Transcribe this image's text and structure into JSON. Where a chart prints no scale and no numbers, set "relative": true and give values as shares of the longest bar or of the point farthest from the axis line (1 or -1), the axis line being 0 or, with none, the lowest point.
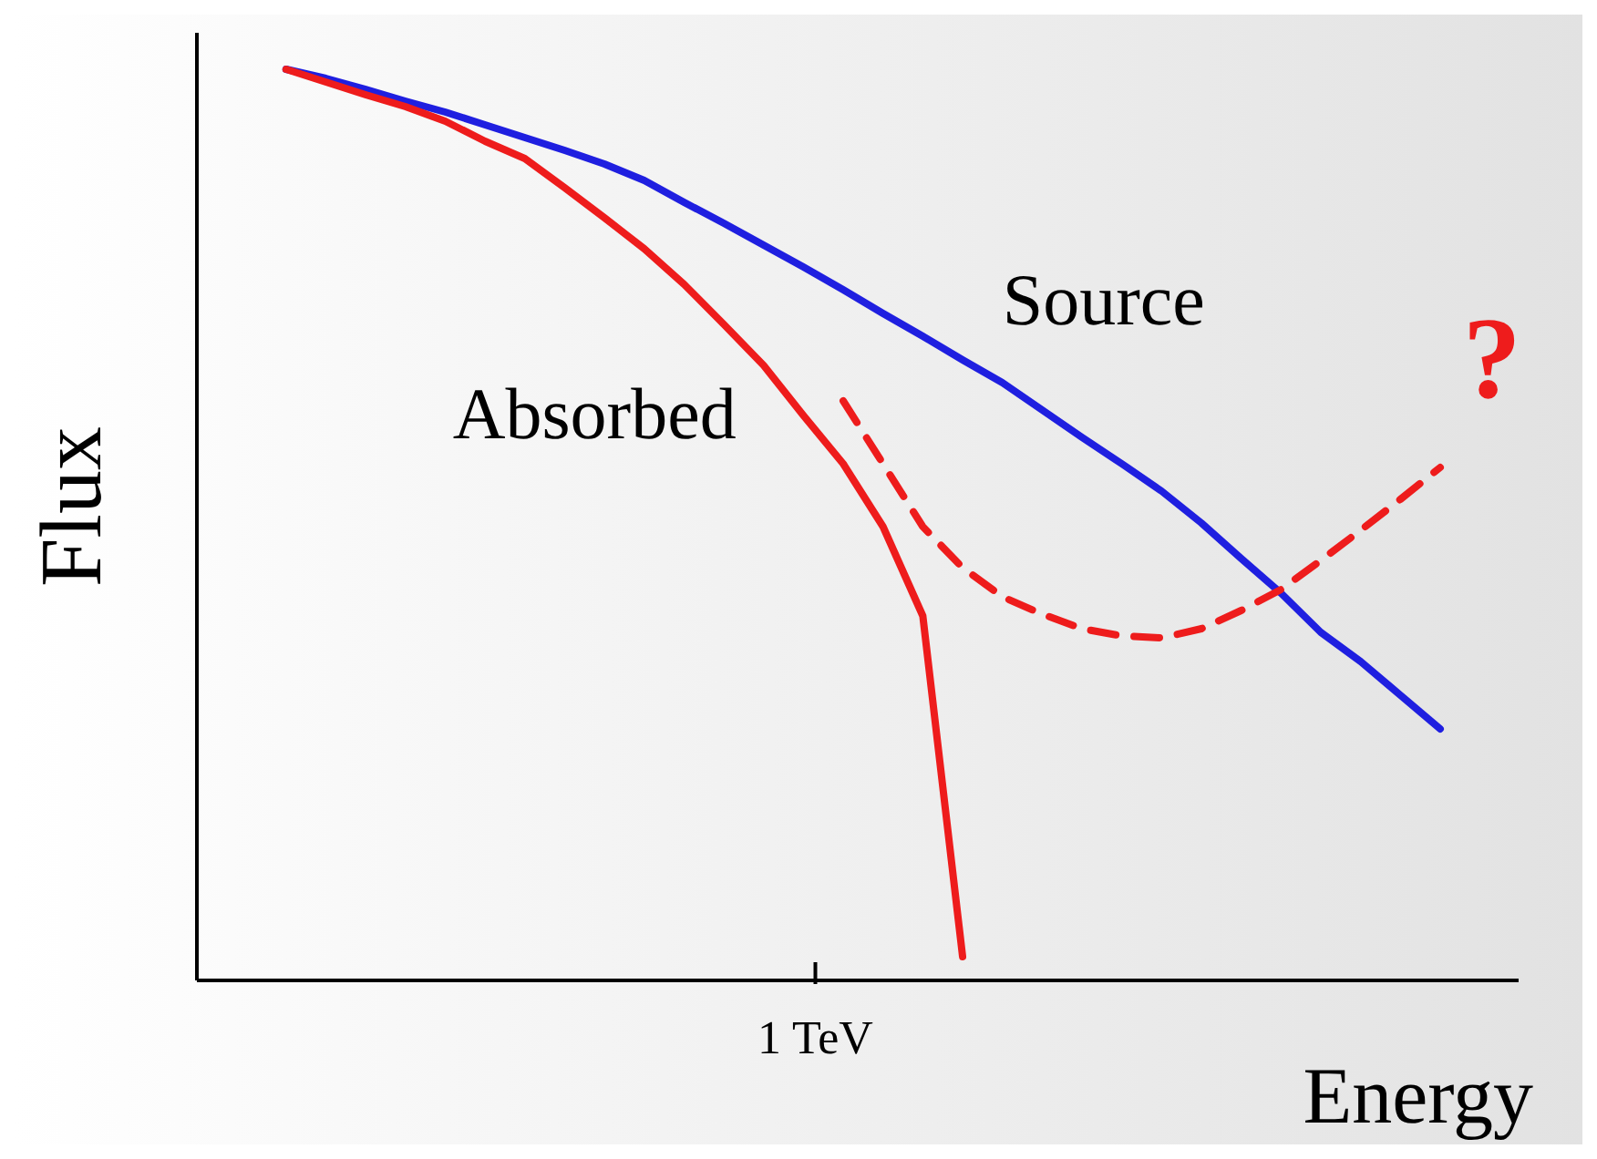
{
  "chart_data": {
    "type": "line",
    "relative": true,
    "xlabel": "Energy",
    "ylabel": "Flux",
    "marker": "none",
    "categories": [
      null,
      null,
      null,
      null,
      null,
      null,
      null,
      null,
      null,
      null,
      null,
      null,
      null,
      null,
      null,
      null,
      null,
      null,
      null,
      null,
      null,
      null,
      null,
      null,
      null,
      null,
      null,
      null,
      null,
      null
    ],
    "series": [
      {
        "name": "Source",
        "color": "#1f1fe0",
        "line_style": "solid",
        "values": [
          1.0,
          0.99,
          0.978,
          0.965,
          0.953,
          0.939,
          0.925,
          0.911,
          0.896,
          0.878,
          0.854,
          0.831,
          0.807,
          0.783,
          0.758,
          0.732,
          0.707,
          0.681,
          0.656,
          0.626,
          0.596,
          0.567,
          0.537,
          0.502,
          0.463,
          0.425,
          0.382,
          0.35,
          0.313,
          0.276
        ]
      },
      {
        "name": "Absorbed",
        "color": "#ee1c1c",
        "line_style": "solid",
        "values": [
          1.0,
          0.986,
          0.972,
          0.959,
          0.943,
          0.921,
          0.902,
          0.87,
          0.837,
          0.803,
          0.764,
          0.72,
          0.675,
          0.62,
          0.567,
          0.498,
          0.4,
          0.026,
          null,
          null,
          null,
          null,
          null,
          null,
          null,
          null,
          null,
          null,
          null,
          null
        ]
      },
      {
        "color": "#ee1c1c",
        "line_style": "dashed",
        "values": [
          null,
          null,
          null,
          null,
          null,
          null,
          null,
          null,
          null,
          null,
          null,
          null,
          null,
          null,
          0.636,
          0.567,
          0.498,
          0.453,
          0.421,
          0.402,
          0.386,
          0.378,
          0.376,
          0.386,
          0.406,
          0.429,
          0.461,
          0.494,
          0.528,
          0.563
        ]
      }
    ],
    "annotations": [
      "1 TeV",
      "?"
    ]
  }
}
